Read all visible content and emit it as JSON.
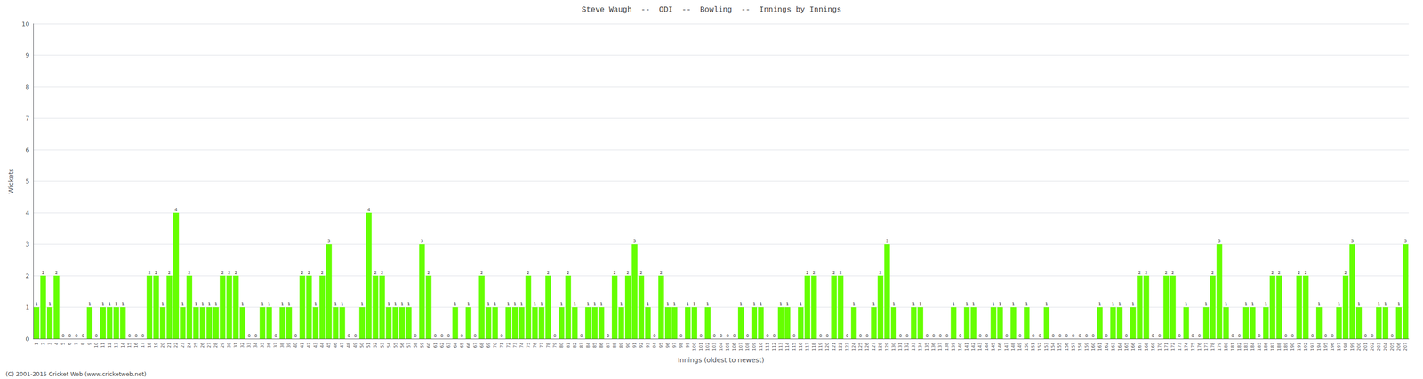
{
  "chart_data": {
    "type": "bar",
    "title": "Steve Waugh  --  ODI  --  Bowling  --  Innings by Innings",
    "ylabel": "Wickets",
    "xlabel": "Innings (oldest to newest)",
    "annotations": [
      "(C) 2001-2015 Cricket Web (www.cricketweb.net)"
    ],
    "color": "#66ff00",
    "ylim": [
      0,
      10
    ],
    "yticks": [
      0,
      1,
      2,
      3,
      4,
      5,
      6,
      7,
      8,
      9,
      10
    ],
    "grid": true,
    "data_labels": true,
    "categories": [
      "1",
      "2",
      "3",
      "4",
      "5",
      "6",
      "7",
      "8",
      "9",
      "10",
      "11",
      "12",
      "13",
      "14",
      "15",
      "16",
      "17",
      "18",
      "19",
      "20",
      "21",
      "22",
      "23",
      "24",
      "25",
      "26",
      "27",
      "28",
      "29",
      "30",
      "31",
      "32",
      "33",
      "34",
      "35",
      "36",
      "37",
      "38",
      "39",
      "40",
      "41",
      "42",
      "43",
      "44",
      "45",
      "46",
      "47",
      "48",
      "49",
      "50",
      "51",
      "52",
      "53",
      "54",
      "55",
      "56",
      "57",
      "58",
      "59",
      "60",
      "61",
      "62",
      "63",
      "64",
      "65",
      "66",
      "67",
      "68",
      "69",
      "70",
      "71",
      "72",
      "73",
      "74",
      "75",
      "76",
      "77",
      "78",
      "79",
      "80",
      "81",
      "82",
      "83",
      "84",
      "85",
      "86",
      "87",
      "88",
      "89",
      "90",
      "91",
      "92",
      "93",
      "94",
      "95",
      "96",
      "97",
      "98",
      "99",
      "100",
      "101",
      "102",
      "103",
      "104",
      "105",
      "106",
      "107",
      "108",
      "109",
      "110",
      "111",
      "112",
      "113",
      "114",
      "115",
      "116",
      "117",
      "118",
      "119",
      "120",
      "121",
      "122",
      "123",
      "124",
      "125",
      "126",
      "127",
      "128",
      "129",
      "130",
      "131",
      "132",
      "133",
      "134",
      "135",
      "136",
      "137",
      "138",
      "139",
      "140",
      "141",
      "142",
      "143",
      "144",
      "145",
      "146",
      "147",
      "148",
      "149",
      "150",
      "151",
      "152",
      "153",
      "154",
      "155",
      "156",
      "157",
      "158",
      "159",
      "160",
      "161",
      "162",
      "163",
      "164",
      "165",
      "166",
      "167",
      "168",
      "169",
      "170",
      "171",
      "172",
      "173",
      "174",
      "175",
      "176",
      "177",
      "178",
      "179",
      "180",
      "181",
      "182",
      "183",
      "184",
      "185",
      "186",
      "187",
      "188",
      "189",
      "190",
      "191",
      "192",
      "193",
      "194",
      "195",
      "196",
      "197",
      "198",
      "199",
      "200",
      "201",
      "202",
      "203",
      "204",
      "205",
      "206",
      "207"
    ],
    "values": [
      1,
      2,
      1,
      2,
      0,
      0,
      0,
      0,
      1,
      0,
      1,
      1,
      1,
      1,
      0,
      0,
      0,
      2,
      2,
      1,
      2,
      4,
      1,
      2,
      1,
      1,
      1,
      1,
      2,
      2,
      2,
      1,
      0,
      0,
      1,
      1,
      0,
      1,
      1,
      0,
      2,
      2,
      1,
      2,
      3,
      1,
      1,
      0,
      0,
      1,
      4,
      2,
      2,
      1,
      1,
      1,
      1,
      0,
      3,
      2,
      0,
      0,
      0,
      1,
      0,
      1,
      0,
      2,
      1,
      1,
      0,
      1,
      1,
      1,
      2,
      1,
      1,
      2,
      0,
      1,
      2,
      1,
      0,
      1,
      1,
      1,
      0,
      2,
      1,
      2,
      3,
      2,
      1,
      0,
      2,
      1,
      1,
      0,
      1,
      1,
      0,
      1,
      0,
      0,
      0,
      0,
      1,
      0,
      1,
      1,
      0,
      0,
      1,
      1,
      0,
      1,
      2,
      2,
      0,
      0,
      2,
      2,
      0,
      1,
      0,
      0,
      1,
      2,
      3,
      1,
      0,
      0,
      1,
      1,
      0,
      0,
      0,
      0,
      1,
      0,
      1,
      1,
      0,
      0,
      1,
      1,
      0,
      1,
      0,
      1,
      0,
      0,
      1,
      0,
      0,
      0,
      0,
      0,
      0,
      0,
      1,
      0,
      1,
      1,
      0,
      1,
      2,
      2,
      0,
      0,
      2,
      2,
      0,
      1,
      0,
      0,
      1,
      2,
      3,
      1,
      0,
      0,
      1,
      1,
      0,
      1,
      2,
      2,
      0,
      0,
      2,
      2,
      0,
      1,
      0,
      0,
      1,
      2,
      3,
      1,
      0,
      0,
      1,
      1,
      0,
      1,
      3
    ]
  }
}
